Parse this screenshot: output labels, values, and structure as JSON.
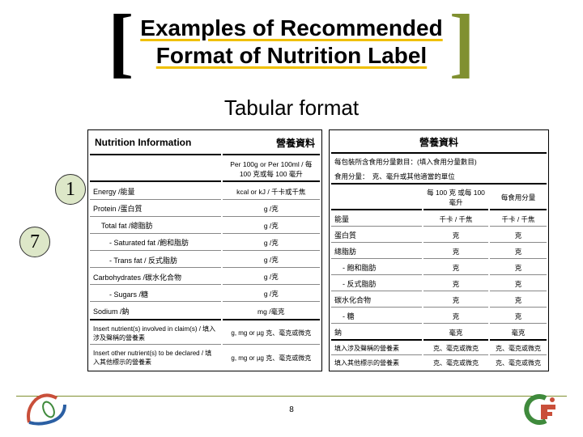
{
  "title_line1": "Examples of Recommended",
  "title_line2": "Format of Nutrition Label",
  "subtitle": "Tabular format",
  "bubble1": "1",
  "bubble7": "7",
  "page_number": "8",
  "colors": {
    "bracket_right": "#809030",
    "underline": "#f0c000",
    "bubble_bg": "#dde7c8",
    "logo_red": "#c94f3a",
    "logo_green": "#3f8a3c",
    "logo_blue": "#2b5fa3"
  },
  "table1": {
    "header_en": "Nutrition Information",
    "header_zh": "營養資料",
    "col_header": "Per 100g or Per 100ml / 每 100 克或每 100 毫升",
    "rows": [
      {
        "label": "Energy /能量",
        "unit": "kcal or kJ / 千卡或千焦",
        "indent": 0
      },
      {
        "label": "Protein /蛋白質",
        "unit": "g /克",
        "indent": 0
      },
      {
        "label": "Total fat /總脂肪",
        "unit": "g /克",
        "indent": 1
      },
      {
        "label": "- Saturated fat /飽和脂肪",
        "unit": "g /克",
        "indent": 2
      },
      {
        "label": "- Trans fat / 反式脂肪",
        "unit": "g /克",
        "indent": 2
      },
      {
        "label": "Carbohydrates /碳水化合物",
        "unit": "g /克",
        "indent": 0
      },
      {
        "label": "- Sugars /糖",
        "unit": "g /克",
        "indent": 2
      },
      {
        "label": "Sodium /鈉",
        "unit": "mg /毫克",
        "indent": 0
      }
    ],
    "footer_rows": [
      {
        "label": "Insert nutrient(s) involved in claim(s) / 填入涉及聲稱的營養素",
        "unit": "g, mg or µg 克、毫克或微克"
      },
      {
        "label": "Insert other nutrient(s) to be declared / 填入其他標示的營養素",
        "unit": "g, mg or µg 克、毫克或微克"
      }
    ]
  },
  "table2": {
    "header": "營養資料",
    "serving_line1": "每包裝所含食用分量數目：(填入食用分量數目)",
    "serving_line2": "食用分量：　克、毫升或其他適當的單位",
    "col1": "每 100 克 或每 100 毫升",
    "col2": "每食用分量",
    "rows": [
      {
        "label": "能量",
        "unit": "千卡 / 千焦",
        "indent": 0
      },
      {
        "label": "蛋白質",
        "unit": "克",
        "indent": 0
      },
      {
        "label": "總脂肪",
        "unit": "克",
        "indent": 0
      },
      {
        "label": "- 飽和脂肪",
        "unit": "克",
        "indent": 1
      },
      {
        "label": "- 反式脂肪",
        "unit": "克",
        "indent": 1
      },
      {
        "label": "碳水化合物",
        "unit": "克",
        "indent": 0
      },
      {
        "label": "- 糖",
        "unit": "克",
        "indent": 1
      },
      {
        "label": "鈉",
        "unit": "毫克",
        "indent": 0
      }
    ],
    "footer_rows": [
      {
        "label": "填入涉及聲稱的營養素",
        "unit": "克、毫克或微克"
      },
      {
        "label": "填入其他標示的營養素",
        "unit": "克、毫克或微克"
      }
    ]
  }
}
